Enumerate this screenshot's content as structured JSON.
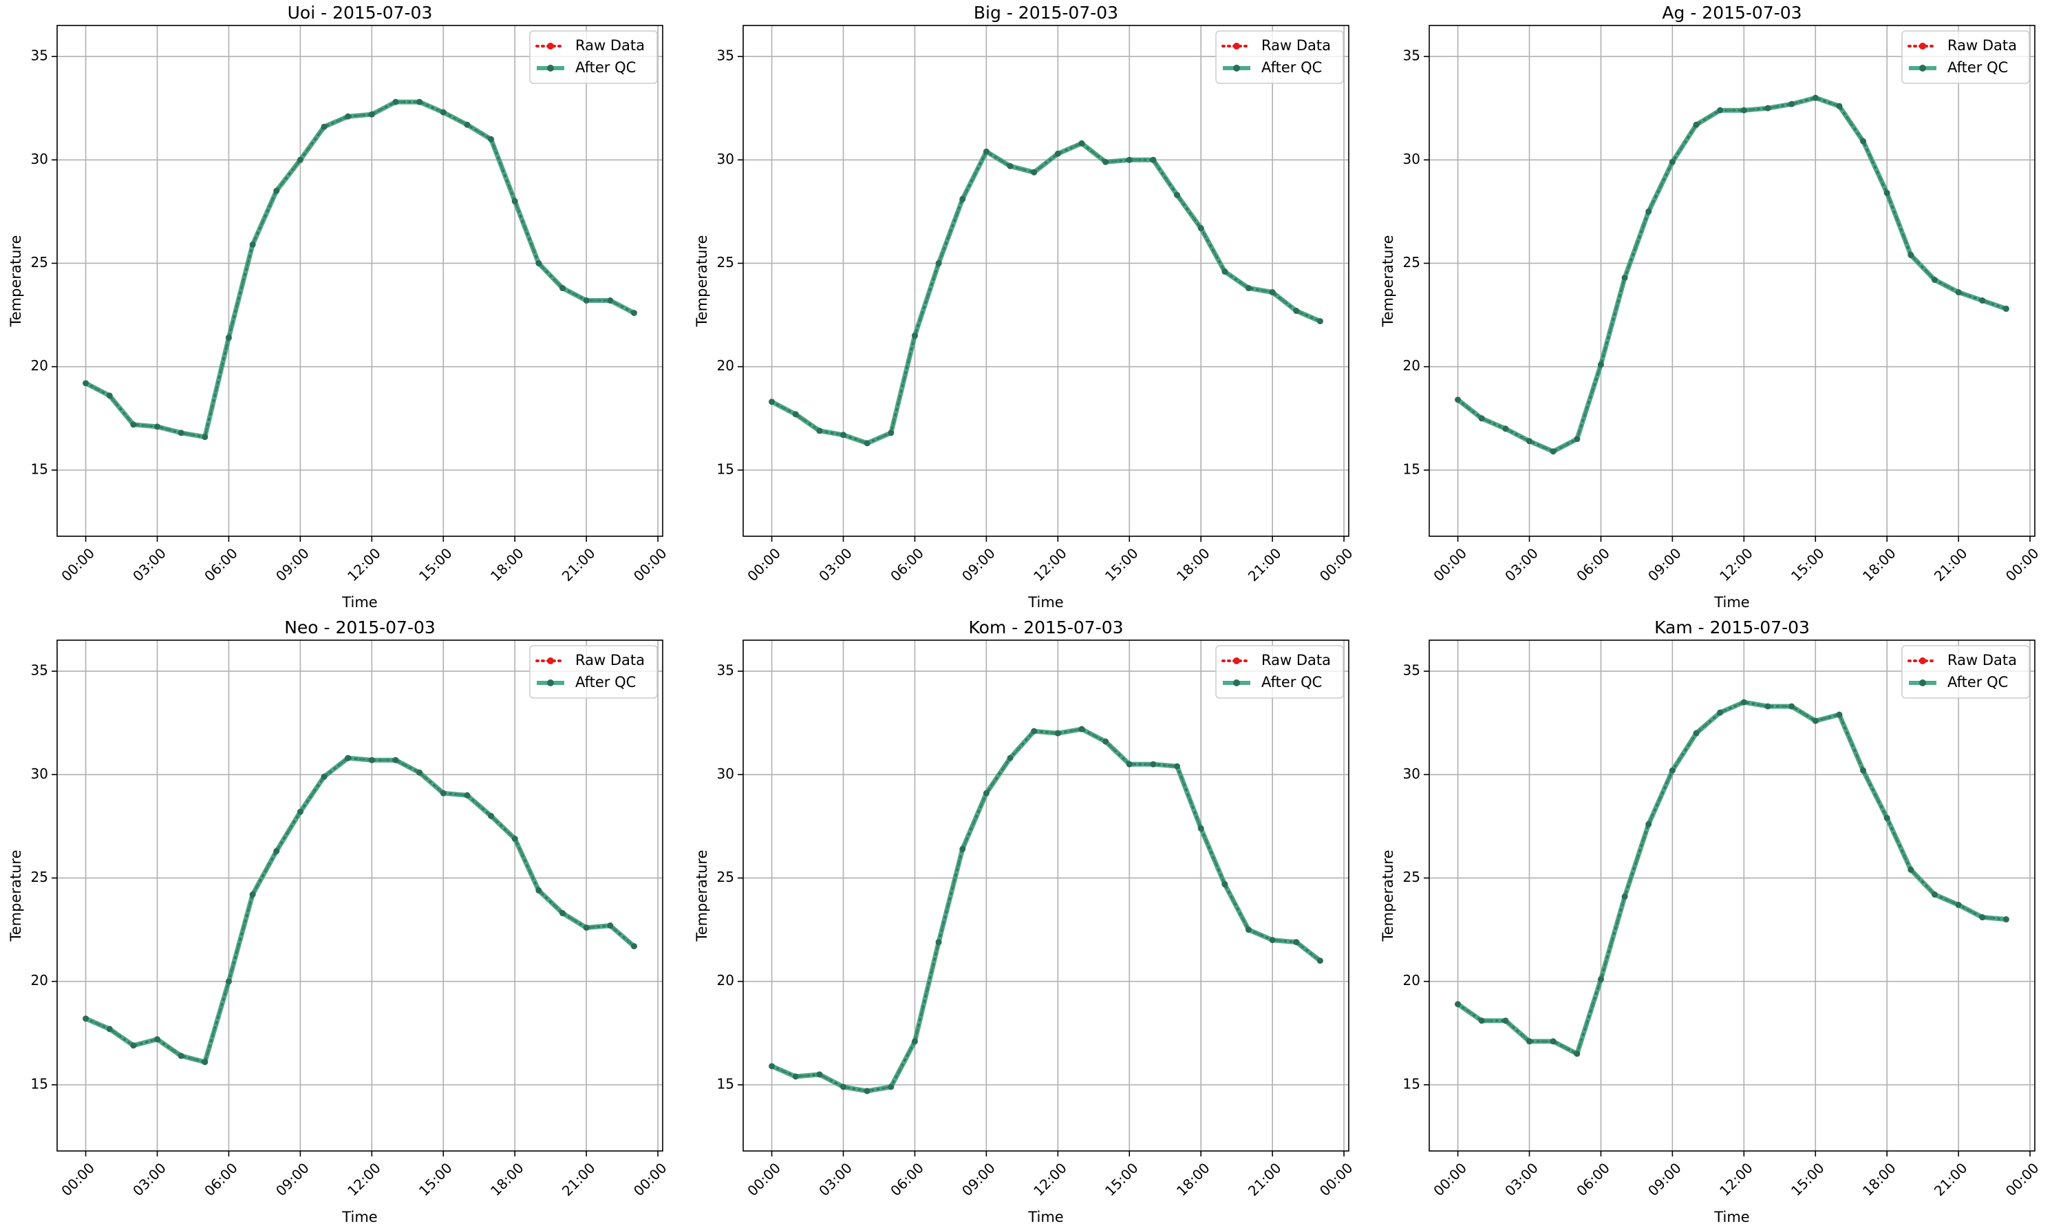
{
  "colors": {
    "raw": "#e41a1c",
    "qc": "#2a9d78",
    "grid": "#b0b0b0"
  },
  "chart_data": [
    {
      "type": "line",
      "title": "Uoi - 2015-07-03",
      "xlabel": "Time",
      "ylabel": "Temperature",
      "xlim": [
        -1.2,
        24.2
      ],
      "ylim": [
        11.8,
        36.5
      ],
      "grid": true,
      "legend": "top-right",
      "x": [
        0,
        1,
        2,
        3,
        4,
        5,
        6,
        7,
        8,
        9,
        10,
        11,
        12,
        13,
        14,
        15,
        16,
        17,
        18,
        19,
        20,
        21,
        22,
        23
      ],
      "x_ticks": [
        0,
        3,
        6,
        9,
        12,
        15,
        18,
        21,
        24
      ],
      "x_tick_labels": [
        "00:00",
        "03:00",
        "06:00",
        "09:00",
        "12:00",
        "15:00",
        "18:00",
        "21:00",
        "00:00"
      ],
      "y_ticks": [
        15,
        20,
        25,
        30,
        35
      ],
      "y_tick_labels": [
        "15",
        "20",
        "25",
        "30",
        "35"
      ],
      "series": [
        {
          "name": "Raw Data",
          "values": [
            19.2,
            18.6,
            17.2,
            17.1,
            16.8,
            16.6,
            21.4,
            25.9,
            28.5,
            30.0,
            31.6,
            32.1,
            32.2,
            32.8,
            32.8,
            32.3,
            31.7,
            31.0,
            28.0,
            25.0,
            23.8,
            23.2,
            23.2,
            22.6
          ]
        },
        {
          "name": "After QC",
          "values": [
            19.2,
            18.6,
            17.2,
            17.1,
            16.8,
            16.6,
            21.4,
            25.9,
            28.5,
            30.0,
            31.6,
            32.1,
            32.2,
            32.8,
            32.8,
            32.3,
            31.7,
            31.0,
            28.0,
            25.0,
            23.8,
            23.2,
            23.2,
            22.6
          ]
        }
      ]
    },
    {
      "type": "line",
      "title": "Big - 2015-07-03",
      "xlabel": "Time",
      "ylabel": "Temperature",
      "xlim": [
        -1.2,
        24.2
      ],
      "ylim": [
        11.8,
        36.5
      ],
      "grid": true,
      "legend": "top-right",
      "x": [
        0,
        1,
        2,
        3,
        4,
        5,
        6,
        7,
        8,
        9,
        10,
        11,
        12,
        13,
        14,
        15,
        16,
        17,
        18,
        19,
        20,
        21,
        22,
        23
      ],
      "x_ticks": [
        0,
        3,
        6,
        9,
        12,
        15,
        18,
        21,
        24
      ],
      "x_tick_labels": [
        "00:00",
        "03:00",
        "06:00",
        "09:00",
        "12:00",
        "15:00",
        "18:00",
        "21:00",
        "00:00"
      ],
      "y_ticks": [
        15,
        20,
        25,
        30,
        35
      ],
      "y_tick_labels": [
        "15",
        "20",
        "25",
        "30",
        "35"
      ],
      "series": [
        {
          "name": "Raw Data",
          "values": [
            18.3,
            17.7,
            16.9,
            16.7,
            16.3,
            16.8,
            21.5,
            25.0,
            28.1,
            30.4,
            29.7,
            29.4,
            30.3,
            30.8,
            29.9,
            30.0,
            30.0,
            28.3,
            26.7,
            24.6,
            23.8,
            23.6,
            22.7,
            22.2
          ]
        },
        {
          "name": "After QC",
          "values": [
            18.3,
            17.7,
            16.9,
            16.7,
            16.3,
            16.8,
            21.5,
            25.0,
            28.1,
            30.4,
            29.7,
            29.4,
            30.3,
            30.8,
            29.9,
            30.0,
            30.0,
            28.3,
            26.7,
            24.6,
            23.8,
            23.6,
            22.7,
            22.2
          ]
        }
      ]
    },
    {
      "type": "line",
      "title": "Ag - 2015-07-03",
      "xlabel": "Time",
      "ylabel": "Temperature",
      "xlim": [
        -1.2,
        24.2
      ],
      "ylim": [
        11.8,
        36.5
      ],
      "grid": true,
      "legend": "top-right",
      "x": [
        0,
        1,
        2,
        3,
        4,
        5,
        6,
        7,
        8,
        9,
        10,
        11,
        12,
        13,
        14,
        15,
        16,
        17,
        18,
        19,
        20,
        21,
        22,
        23
      ],
      "x_ticks": [
        0,
        3,
        6,
        9,
        12,
        15,
        18,
        21,
        24
      ],
      "x_tick_labels": [
        "00:00",
        "03:00",
        "06:00",
        "09:00",
        "12:00",
        "15:00",
        "18:00",
        "21:00",
        "00:00"
      ],
      "y_ticks": [
        15,
        20,
        25,
        30,
        35
      ],
      "y_tick_labels": [
        "15",
        "20",
        "25",
        "30",
        "35"
      ],
      "series": [
        {
          "name": "Raw Data",
          "values": [
            18.4,
            17.5,
            17.0,
            16.4,
            15.9,
            16.5,
            20.1,
            24.3,
            27.5,
            29.9,
            31.7,
            32.4,
            32.4,
            32.5,
            32.7,
            33.0,
            32.6,
            30.9,
            28.4,
            25.4,
            24.2,
            23.6,
            23.2,
            22.8
          ]
        },
        {
          "name": "After QC",
          "values": [
            18.4,
            17.5,
            17.0,
            16.4,
            15.9,
            16.5,
            20.1,
            24.3,
            27.5,
            29.9,
            31.7,
            32.4,
            32.4,
            32.5,
            32.7,
            33.0,
            32.6,
            30.9,
            28.4,
            25.4,
            24.2,
            23.6,
            23.2,
            22.8
          ]
        }
      ]
    },
    {
      "type": "line",
      "title": "Neo - 2015-07-03",
      "xlabel": "Time",
      "ylabel": "Temperature",
      "xlim": [
        -1.2,
        24.2
      ],
      "ylim": [
        11.8,
        36.5
      ],
      "grid": true,
      "legend": "top-right",
      "x": [
        0,
        1,
        2,
        3,
        4,
        5,
        6,
        7,
        8,
        9,
        10,
        11,
        12,
        13,
        14,
        15,
        16,
        17,
        18,
        19,
        20,
        21,
        22,
        23
      ],
      "x_ticks": [
        0,
        3,
        6,
        9,
        12,
        15,
        18,
        21,
        24
      ],
      "x_tick_labels": [
        "00:00",
        "03:00",
        "06:00",
        "09:00",
        "12:00",
        "15:00",
        "18:00",
        "21:00",
        "00:00"
      ],
      "y_ticks": [
        15,
        20,
        25,
        30,
        35
      ],
      "y_tick_labels": [
        "15",
        "20",
        "25",
        "30",
        "35"
      ],
      "series": [
        {
          "name": "Raw Data",
          "values": [
            18.2,
            17.7,
            16.9,
            17.2,
            16.4,
            16.1,
            20.0,
            24.2,
            26.3,
            28.2,
            29.9,
            30.8,
            30.7,
            30.7,
            30.1,
            29.1,
            29.0,
            28.0,
            26.9,
            24.4,
            23.3,
            22.6,
            22.7,
            21.7
          ]
        },
        {
          "name": "After QC",
          "values": [
            18.2,
            17.7,
            16.9,
            17.2,
            16.4,
            16.1,
            20.0,
            24.2,
            26.3,
            28.2,
            29.9,
            30.8,
            30.7,
            30.7,
            30.1,
            29.1,
            29.0,
            28.0,
            26.9,
            24.4,
            23.3,
            22.6,
            22.7,
            21.7
          ]
        }
      ]
    },
    {
      "type": "line",
      "title": "Kom - 2015-07-03",
      "xlabel": "Time",
      "ylabel": "Temperature",
      "xlim": [
        -1.2,
        24.2
      ],
      "ylim": [
        11.8,
        36.5
      ],
      "grid": true,
      "legend": "top-right",
      "x": [
        0,
        1,
        2,
        3,
        4,
        5,
        6,
        7,
        8,
        9,
        10,
        11,
        12,
        13,
        14,
        15,
        16,
        17,
        18,
        19,
        20,
        21,
        22,
        23
      ],
      "x_ticks": [
        0,
        3,
        6,
        9,
        12,
        15,
        18,
        21,
        24
      ],
      "x_tick_labels": [
        "00:00",
        "03:00",
        "06:00",
        "09:00",
        "12:00",
        "15:00",
        "18:00",
        "21:00",
        "00:00"
      ],
      "y_ticks": [
        15,
        20,
        25,
        30,
        35
      ],
      "y_tick_labels": [
        "15",
        "20",
        "25",
        "30",
        "35"
      ],
      "series": [
        {
          "name": "Raw Data",
          "values": [
            15.9,
            15.4,
            15.5,
            14.9,
            14.7,
            14.9,
            17.1,
            21.9,
            26.4,
            29.1,
            30.8,
            32.1,
            32.0,
            32.2,
            31.6,
            30.5,
            30.5,
            30.4,
            27.4,
            24.7,
            22.5,
            22.0,
            21.9,
            21.0
          ]
        },
        {
          "name": "After QC",
          "values": [
            15.9,
            15.4,
            15.5,
            14.9,
            14.7,
            14.9,
            17.1,
            21.9,
            26.4,
            29.1,
            30.8,
            32.1,
            32.0,
            32.2,
            31.6,
            30.5,
            30.5,
            30.4,
            27.4,
            24.7,
            22.5,
            22.0,
            21.9,
            21.0
          ]
        }
      ]
    },
    {
      "type": "line",
      "title": "Kam - 2015-07-03",
      "xlabel": "Time",
      "ylabel": "Temperature",
      "xlim": [
        -1.2,
        24.2
      ],
      "ylim": [
        11.8,
        36.5
      ],
      "grid": true,
      "legend": "top-right",
      "x": [
        0,
        1,
        2,
        3,
        4,
        5,
        6,
        7,
        8,
        9,
        10,
        11,
        12,
        13,
        14,
        15,
        16,
        17,
        18,
        19,
        20,
        21,
        22,
        23
      ],
      "x_ticks": [
        0,
        3,
        6,
        9,
        12,
        15,
        18,
        21,
        24
      ],
      "x_tick_labels": [
        "00:00",
        "03:00",
        "06:00",
        "09:00",
        "12:00",
        "15:00",
        "18:00",
        "21:00",
        "00:00"
      ],
      "y_ticks": [
        15,
        20,
        25,
        30,
        35
      ],
      "y_tick_labels": [
        "15",
        "20",
        "25",
        "30",
        "35"
      ],
      "series": [
        {
          "name": "Raw Data",
          "values": [
            18.9,
            18.1,
            18.1,
            17.1,
            17.1,
            16.5,
            20.1,
            24.1,
            27.6,
            30.2,
            32.0,
            33.0,
            33.5,
            33.3,
            33.3,
            32.6,
            32.9,
            30.2,
            27.9,
            25.4,
            24.2,
            23.7,
            23.1,
            23.0
          ]
        },
        {
          "name": "After QC",
          "values": [
            18.9,
            18.1,
            18.1,
            17.1,
            17.1,
            16.5,
            20.1,
            24.1,
            27.6,
            30.2,
            32.0,
            33.0,
            33.5,
            33.3,
            33.3,
            32.6,
            32.9,
            30.2,
            27.9,
            25.4,
            24.2,
            23.7,
            23.1,
            23.0
          ]
        }
      ]
    }
  ]
}
